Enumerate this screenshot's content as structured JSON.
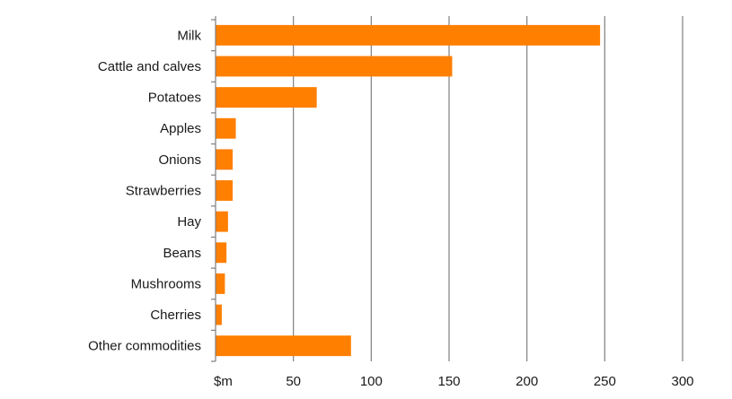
{
  "chart_data": {
    "type": "bar",
    "orientation": "horizontal",
    "categories": [
      "Milk",
      "Cattle and calves",
      "Potatoes",
      "Apples",
      "Onions",
      "Strawberries",
      "Hay",
      "Beans",
      "Mushrooms",
      "Cherries",
      "Other commodities"
    ],
    "values": [
      247,
      152,
      65,
      13,
      11,
      11,
      8,
      7,
      6,
      4,
      87
    ],
    "xlim": [
      0,
      300
    ],
    "x_ticks": [
      0,
      50,
      100,
      150,
      200,
      250,
      300
    ],
    "x_tick_labels": [
      "$m",
      "50",
      "100",
      "150",
      "200",
      "250",
      "300"
    ],
    "grid": "vertical",
    "bar_color": "#FF7F00",
    "title": "",
    "xlabel": "",
    "ylabel": ""
  }
}
